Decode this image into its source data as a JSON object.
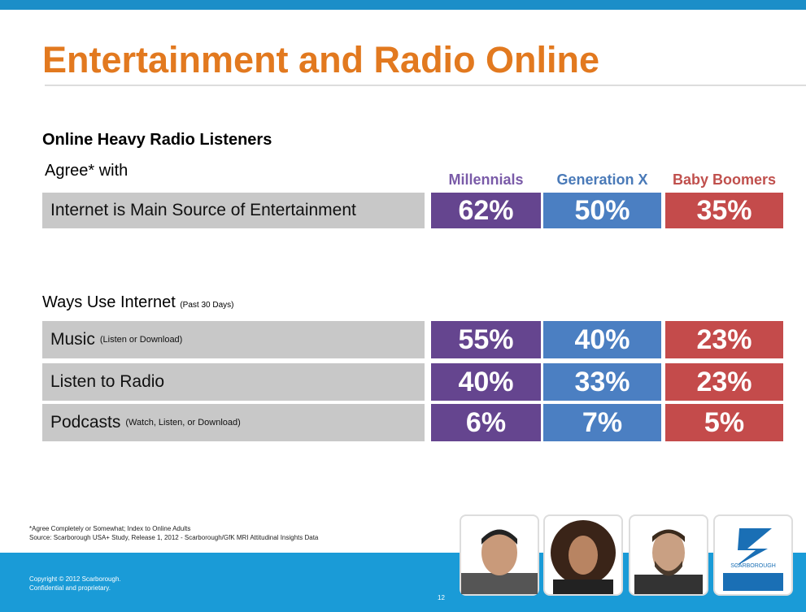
{
  "header": {
    "title": "Entertainment and Radio Online"
  },
  "section1": {
    "heading": "Online Heavy Radio Listeners",
    "subheading": "Agree* with",
    "columns": [
      "Millennials",
      "Generation X",
      "Baby Boomers"
    ],
    "rows": [
      {
        "label": "Internet is Main Source of Entertainment",
        "values": [
          "62%",
          "50%",
          "35%"
        ]
      }
    ]
  },
  "section2": {
    "heading": "Ways Use Internet",
    "note": "(Past 30 Days)",
    "rows": [
      {
        "label": "Music",
        "note": "(Listen or Download)",
        "values": [
          "55%",
          "40%",
          "23%"
        ]
      },
      {
        "label": "Listen to Radio",
        "values": [
          "40%",
          "33%",
          "23%"
        ]
      },
      {
        "label": "Podcasts",
        "note": "(Watch, Listen, or Download)",
        "values": [
          "6%",
          "7%",
          "5%"
        ]
      }
    ]
  },
  "footnotes": [
    "*Agree Completely or Somewhat; Index to Online Adults",
    "Source: Scarborough USA+ Study, Release 1, 2012 - Scarborough/GfK MRI Attitudinal Insights Data"
  ],
  "footer": {
    "copyright": [
      "Copyright © 2012 Scarborough.",
      "Confidential and proprietary."
    ],
    "page": "12",
    "logo": "SCARBOROUGH"
  }
}
